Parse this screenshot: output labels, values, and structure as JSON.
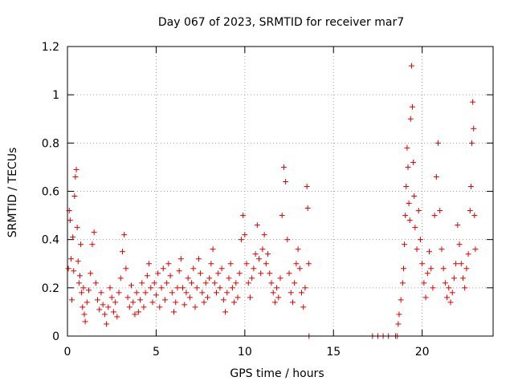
{
  "chart_data": {
    "type": "scatter",
    "title": "Day 067 of 2023, SRMTID for receiver mar7",
    "xlabel": "GPS time / hours",
    "ylabel": "SRMTID / TECUs",
    "xlim": [
      0,
      24
    ],
    "ylim": [
      0,
      1.2
    ],
    "x_ticks": [
      0,
      5,
      10,
      15,
      20
    ],
    "x_tick_labels": [
      "0",
      "5",
      "10",
      "15",
      "20"
    ],
    "y_ticks": [
      0,
      0.2,
      0.4,
      0.6,
      0.8,
      1.0,
      1.2
    ],
    "y_tick_labels": [
      "0",
      "0.2",
      "0.4",
      "0.6",
      "0.8",
      "1",
      "1.2"
    ],
    "grid": true,
    "marker": "+",
    "color": "#e00000",
    "series": [
      {
        "name": "SRMTID",
        "points": [
          [
            0.05,
            0.28
          ],
          [
            0.1,
            0.52
          ],
          [
            0.15,
            0.48
          ],
          [
            0.2,
            0.32
          ],
          [
            0.25,
            0.15
          ],
          [
            0.3,
            0.41
          ],
          [
            0.35,
            0.27
          ],
          [
            0.4,
            0.58
          ],
          [
            0.45,
            0.66
          ],
          [
            0.5,
            0.69
          ],
          [
            0.55,
            0.45
          ],
          [
            0.6,
            0.31
          ],
          [
            0.65,
            0.22
          ],
          [
            0.7,
            0.25
          ],
          [
            0.75,
            0.38
          ],
          [
            0.8,
            0.18
          ],
          [
            0.85,
            0.12
          ],
          [
            0.9,
            0.2
          ],
          [
            0.95,
            0.09
          ],
          [
            1.0,
            0.06
          ],
          [
            1.1,
            0.14
          ],
          [
            1.2,
            0.19
          ],
          [
            1.3,
            0.26
          ],
          [
            1.4,
            0.38
          ],
          [
            1.5,
            0.43
          ],
          [
            1.6,
            0.22
          ],
          [
            1.7,
            0.15
          ],
          [
            1.8,
            0.11
          ],
          [
            1.9,
            0.18
          ],
          [
            2.0,
            0.13
          ],
          [
            2.1,
            0.09
          ],
          [
            2.2,
            0.05
          ],
          [
            2.3,
            0.12
          ],
          [
            2.4,
            0.2
          ],
          [
            2.5,
            0.16
          ],
          [
            2.6,
            0.1
          ],
          [
            2.7,
            0.14
          ],
          [
            2.8,
            0.08
          ],
          [
            2.9,
            0.18
          ],
          [
            3.0,
            0.24
          ],
          [
            3.1,
            0.35
          ],
          [
            3.2,
            0.42
          ],
          [
            3.3,
            0.28
          ],
          [
            3.4,
            0.16
          ],
          [
            3.5,
            0.12
          ],
          [
            3.6,
            0.21
          ],
          [
            3.7,
            0.14
          ],
          [
            3.8,
            0.09
          ],
          [
            3.9,
            0.18
          ],
          [
            4.0,
            0.1
          ],
          [
            4.1,
            0.15
          ],
          [
            4.2,
            0.22
          ],
          [
            4.3,
            0.12
          ],
          [
            4.4,
            0.18
          ],
          [
            4.5,
            0.25
          ],
          [
            4.6,
            0.3
          ],
          [
            4.7,
            0.2
          ],
          [
            4.8,
            0.14
          ],
          [
            4.9,
            0.22
          ],
          [
            5.0,
            0.17
          ],
          [
            5.1,
            0.26
          ],
          [
            5.2,
            0.12
          ],
          [
            5.3,
            0.2
          ],
          [
            5.4,
            0.28
          ],
          [
            5.5,
            0.15
          ],
          [
            5.6,
            0.22
          ],
          [
            5.7,
            0.3
          ],
          [
            5.8,
            0.25
          ],
          [
            5.9,
            0.18
          ],
          [
            6.0,
            0.1
          ],
          [
            6.1,
            0.14
          ],
          [
            6.2,
            0.2
          ],
          [
            6.3,
            0.27
          ],
          [
            6.4,
            0.32
          ],
          [
            6.5,
            0.2
          ],
          [
            6.6,
            0.13
          ],
          [
            6.7,
            0.18
          ],
          [
            6.8,
            0.24
          ],
          [
            6.9,
            0.16
          ],
          [
            7.0,
            0.22
          ],
          [
            7.1,
            0.28
          ],
          [
            7.2,
            0.12
          ],
          [
            7.3,
            0.2
          ],
          [
            7.4,
            0.32
          ],
          [
            7.5,
            0.26
          ],
          [
            7.6,
            0.18
          ],
          [
            7.7,
            0.14
          ],
          [
            7.8,
            0.22
          ],
          [
            7.9,
            0.16
          ],
          [
            8.0,
            0.24
          ],
          [
            8.1,
            0.3
          ],
          [
            8.2,
            0.36
          ],
          [
            8.3,
            0.22
          ],
          [
            8.4,
            0.18
          ],
          [
            8.5,
            0.26
          ],
          [
            8.6,
            0.2
          ],
          [
            8.7,
            0.28
          ],
          [
            8.8,
            0.15
          ],
          [
            8.9,
            0.1
          ],
          [
            9.0,
            0.18
          ],
          [
            9.1,
            0.24
          ],
          [
            9.2,
            0.3
          ],
          [
            9.3,
            0.2
          ],
          [
            9.4,
            0.14
          ],
          [
            9.5,
            0.22
          ],
          [
            9.6,
            0.16
          ],
          [
            9.7,
            0.26
          ],
          [
            9.8,
            0.4
          ],
          [
            9.9,
            0.5
          ],
          [
            10.0,
            0.42
          ],
          [
            10.1,
            0.3
          ],
          [
            10.2,
            0.22
          ],
          [
            10.3,
            0.16
          ],
          [
            10.4,
            0.24
          ],
          [
            10.5,
            0.28
          ],
          [
            10.6,
            0.34
          ],
          [
            10.7,
            0.46
          ],
          [
            10.8,
            0.32
          ],
          [
            10.9,
            0.26
          ],
          [
            11.0,
            0.36
          ],
          [
            11.1,
            0.42
          ],
          [
            11.2,
            0.3
          ],
          [
            11.3,
            0.34
          ],
          [
            11.4,
            0.26
          ],
          [
            11.5,
            0.22
          ],
          [
            11.6,
            0.18
          ],
          [
            11.7,
            0.14
          ],
          [
            11.8,
            0.2
          ],
          [
            11.9,
            0.16
          ],
          [
            12.0,
            0.24
          ],
          [
            12.1,
            0.5
          ],
          [
            12.2,
            0.7
          ],
          [
            12.3,
            0.64
          ],
          [
            12.4,
            0.4
          ],
          [
            12.5,
            0.26
          ],
          [
            12.6,
            0.18
          ],
          [
            12.7,
            0.14
          ],
          [
            12.8,
            0.22
          ],
          [
            12.9,
            0.3
          ],
          [
            13.0,
            0.36
          ],
          [
            13.1,
            0.28
          ],
          [
            13.2,
            0.18
          ],
          [
            13.3,
            0.12
          ],
          [
            13.4,
            0.2
          ],
          [
            13.5,
            0.62
          ],
          [
            13.55,
            0.53
          ],
          [
            13.6,
            0.3
          ],
          [
            13.62,
            0.0
          ],
          [
            17.2,
            0.0
          ],
          [
            17.5,
            0.0
          ],
          [
            17.8,
            0.0
          ],
          [
            18.1,
            0.0
          ],
          [
            18.5,
            0.0
          ],
          [
            18.6,
            0.0
          ],
          [
            18.65,
            0.05
          ],
          [
            18.7,
            0.09
          ],
          [
            18.8,
            0.15
          ],
          [
            18.9,
            0.22
          ],
          [
            18.95,
            0.28
          ],
          [
            19.0,
            0.38
          ],
          [
            19.05,
            0.5
          ],
          [
            19.1,
            0.62
          ],
          [
            19.15,
            0.78
          ],
          [
            19.2,
            0.7
          ],
          [
            19.25,
            0.55
          ],
          [
            19.3,
            0.48
          ],
          [
            19.35,
            0.9
          ],
          [
            19.4,
            1.12
          ],
          [
            19.45,
            0.95
          ],
          [
            19.5,
            0.72
          ],
          [
            19.55,
            0.58
          ],
          [
            19.6,
            0.45
          ],
          [
            19.7,
            0.36
          ],
          [
            19.8,
            0.52
          ],
          [
            19.9,
            0.4
          ],
          [
            20.0,
            0.3
          ],
          [
            20.1,
            0.22
          ],
          [
            20.2,
            0.16
          ],
          [
            20.3,
            0.26
          ],
          [
            20.4,
            0.35
          ],
          [
            20.5,
            0.28
          ],
          [
            20.6,
            0.2
          ],
          [
            20.7,
            0.5
          ],
          [
            20.8,
            0.66
          ],
          [
            20.9,
            0.8
          ],
          [
            21.0,
            0.52
          ],
          [
            21.1,
            0.36
          ],
          [
            21.2,
            0.28
          ],
          [
            21.3,
            0.22
          ],
          [
            21.4,
            0.16
          ],
          [
            21.5,
            0.2
          ],
          [
            21.6,
            0.14
          ],
          [
            21.7,
            0.18
          ],
          [
            21.8,
            0.24
          ],
          [
            21.9,
            0.3
          ],
          [
            22.0,
            0.46
          ],
          [
            22.1,
            0.38
          ],
          [
            22.2,
            0.3
          ],
          [
            22.3,
            0.24
          ],
          [
            22.4,
            0.2
          ],
          [
            22.5,
            0.28
          ],
          [
            22.6,
            0.34
          ],
          [
            22.7,
            0.52
          ],
          [
            22.75,
            0.62
          ],
          [
            22.8,
            0.8
          ],
          [
            22.85,
            0.97
          ],
          [
            22.9,
            0.86
          ],
          [
            22.95,
            0.5
          ],
          [
            23.0,
            0.36
          ]
        ]
      }
    ]
  }
}
